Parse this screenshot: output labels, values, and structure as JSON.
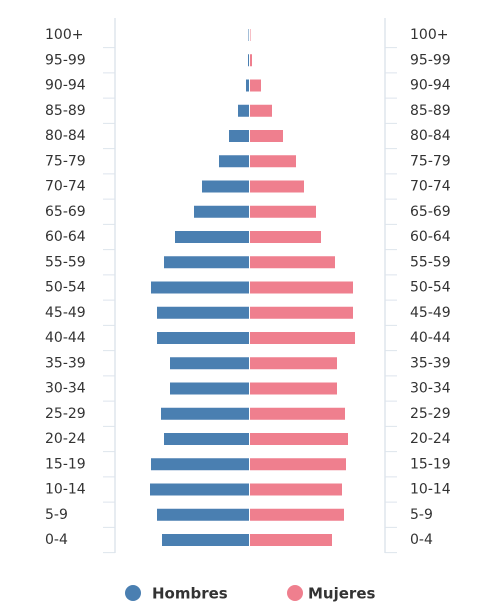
{
  "chart_data": {
    "type": "pyramid",
    "categories": [
      "100+",
      "95-99",
      "90-94",
      "85-89",
      "80-84",
      "75-79",
      "70-74",
      "65-69",
      "60-64",
      "55-59",
      "50-54",
      "45-49",
      "40-44",
      "35-39",
      "30-34",
      "25-29",
      "20-24",
      "15-19",
      "10-14",
      "5-9",
      "0-4"
    ],
    "series": [
      {
        "name": "Hombres",
        "color": "#4a7fb1",
        "values": [
          0.5,
          1,
          3,
          11,
          20,
          30,
          47,
          55,
          74,
          85,
          98,
          92,
          92,
          79,
          79,
          88,
          85,
          98,
          99,
          92,
          87
        ]
      },
      {
        "name": "Mujeres",
        "color": "#ef7f8e",
        "values": [
          0.5,
          2,
          11,
          22,
          33,
          46,
          54,
          66,
          71,
          85,
          103,
          103,
          105,
          87,
          87,
          95,
          98,
          96,
          92,
          94,
          82
        ]
      }
    ],
    "xlim": [
      0,
      110
    ]
  }
}
